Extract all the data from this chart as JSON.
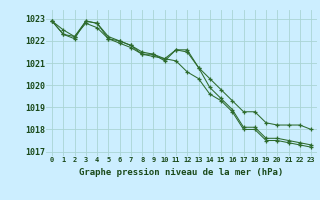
{
  "title": "Graphe pression niveau de la mer (hPa)",
  "background_color": "#cceeff",
  "grid_color": "#aad4d4",
  "line_color": "#2d6b2d",
  "xlim": [
    -0.5,
    23.5
  ],
  "ylim": [
    1016.8,
    1023.4
  ],
  "yticks": [
    1017,
    1018,
    1019,
    1020,
    1021,
    1022,
    1023
  ],
  "series1": [
    1022.9,
    1022.5,
    1022.2,
    1022.8,
    1022.6,
    1022.1,
    1021.9,
    1021.7,
    1021.4,
    1021.3,
    1021.2,
    1021.1,
    1020.6,
    1020.3,
    1019.6,
    1019.3,
    1018.8,
    1018.0,
    1018.0,
    1017.5,
    1017.5,
    1017.4,
    1017.3,
    1017.2
  ],
  "series2": [
    1022.9,
    1022.3,
    1022.2,
    1022.9,
    1022.8,
    1022.1,
    1022.0,
    1021.8,
    1021.5,
    1021.4,
    1021.2,
    1021.6,
    1021.5,
    1020.8,
    1019.9,
    1019.4,
    1018.9,
    1018.1,
    1018.1,
    1017.6,
    1017.6,
    1017.5,
    1017.4,
    1017.3
  ],
  "series3": [
    1022.9,
    1022.3,
    1022.1,
    1022.9,
    1022.8,
    1022.2,
    1022.0,
    1021.8,
    1021.4,
    1021.4,
    1021.1,
    1021.6,
    1021.6,
    1020.8,
    1020.3,
    1019.8,
    1019.3,
    1018.8,
    1018.8,
    1018.3,
    1018.2,
    1018.2,
    1018.2,
    1018.0
  ]
}
